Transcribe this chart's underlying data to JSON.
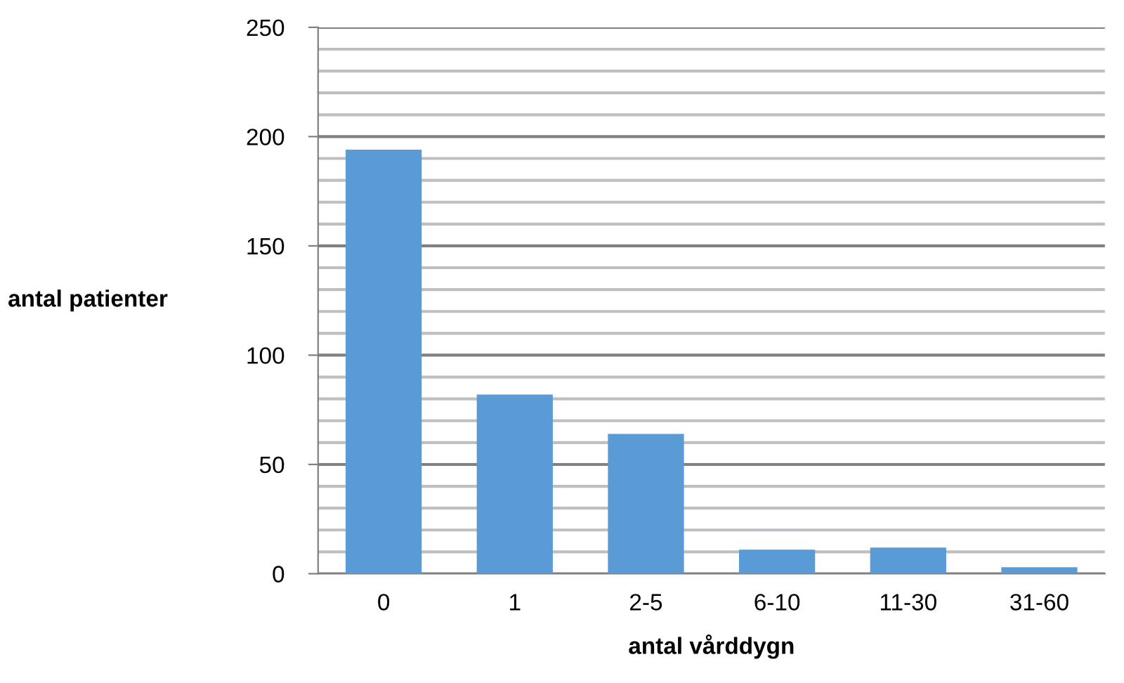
{
  "chart_data": {
    "type": "bar",
    "xlabel": "antal vårddygn",
    "ylabel": "antal patienter",
    "categories": [
      "0",
      "1",
      "2-5",
      "6-10",
      "11-30",
      "31-60"
    ],
    "values": [
      194,
      82,
      64,
      11,
      12,
      3
    ],
    "color": "#5b9bd5",
    "ylim": [
      0,
      250
    ],
    "yticks": [
      0,
      50,
      100,
      150,
      200,
      250
    ],
    "grid": true
  }
}
